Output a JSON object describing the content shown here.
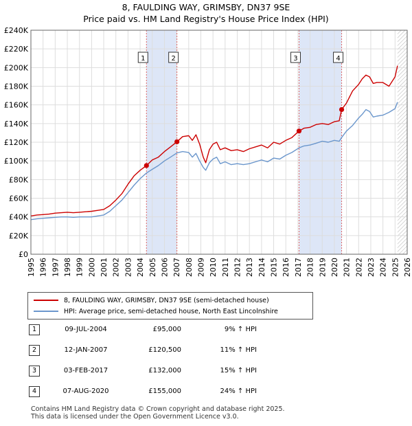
{
  "title_line1": "8, FAULDING WAY, GRIMSBY, DN37 9SE",
  "title_line2": "Price paid vs. HM Land Registry's House Price Index (HPI)",
  "colors": {
    "property": "#cc0000",
    "hpi": "#6a96cc",
    "shade": "#dde6f7",
    "grid": "#dddddd",
    "vline": "#dd6666"
  },
  "legend": {
    "property": "8, FAULDING WAY, GRIMSBY, DN37 9SE (semi-detached house)",
    "hpi": "HPI: Average price, semi-detached house, North East Lincolnshire"
  },
  "sales": [
    {
      "num": "1",
      "date": "09-JUL-2004",
      "price": "£95,000",
      "hpi": "9% ↑ HPI"
    },
    {
      "num": "2",
      "date": "12-JAN-2007",
      "price": "£120,500",
      "hpi": "11% ↑ HPI"
    },
    {
      "num": "3",
      "date": "03-FEB-2017",
      "price": "£132,000",
      "hpi": "15% ↑ HPI"
    },
    {
      "num": "4",
      "date": "07-AUG-2020",
      "price": "£155,000",
      "hpi": "24% ↑ HPI"
    }
  ],
  "footer_line1": "Contains HM Land Registry data © Crown copyright and database right 2025.",
  "footer_line2": "This data is licensed under the Open Government Licence v3.0.",
  "chart_data": {
    "type": "line",
    "title": "8, FAULDING WAY, GRIMSBY, DN37 9SE — Price paid vs. HM Land Registry's House Price Index (HPI)",
    "xlabel": "",
    "ylabel": "",
    "xlim": [
      1995,
      2026
    ],
    "ylim": [
      0,
      240000
    ],
    "grid": true,
    "x_ticks": [
      "1995",
      "1996",
      "1997",
      "1998",
      "1999",
      "2000",
      "2001",
      "2002",
      "2003",
      "2004",
      "2005",
      "2006",
      "2007",
      "2008",
      "2009",
      "2010",
      "2011",
      "2012",
      "2013",
      "2014",
      "2015",
      "2016",
      "2017",
      "2018",
      "2019",
      "2020",
      "2021",
      "2022",
      "2023",
      "2024",
      "2025",
      "2026"
    ],
    "y_ticks": [
      {
        "value": 0,
        "label": "£0"
      },
      {
        "value": 20000,
        "label": "£20K"
      },
      {
        "value": 40000,
        "label": "£40K"
      },
      {
        "value": 60000,
        "label": "£60K"
      },
      {
        "value": 80000,
        "label": "£80K"
      },
      {
        "value": 100000,
        "label": "£100K"
      },
      {
        "value": 120000,
        "label": "£120K"
      },
      {
        "value": 140000,
        "label": "£140K"
      },
      {
        "value": 160000,
        "label": "£160K"
      },
      {
        "value": 180000,
        "label": "£180K"
      },
      {
        "value": 200000,
        "label": "£200K"
      },
      {
        "value": 220000,
        "label": "£220K"
      },
      {
        "value": 240000,
        "label": "£240K"
      }
    ],
    "shaded_ranges": [
      [
        2004.52,
        2007.03
      ],
      [
        2017.09,
        2020.6
      ]
    ],
    "future_hatch_from": 2025.2,
    "markers": [
      {
        "label": "1",
        "x": 2004.52,
        "y": 95000
      },
      {
        "label": "2",
        "x": 2007.03,
        "y": 120500
      },
      {
        "label": "3",
        "x": 2017.09,
        "y": 132000
      },
      {
        "label": "4",
        "x": 2020.6,
        "y": 155000
      }
    ],
    "series": [
      {
        "name": "8, FAULDING WAY, GRIMSBY, DN37 9SE (semi-detached house)",
        "x": [
          1995,
          1995.5,
          1996,
          1996.5,
          1997,
          1997.5,
          1998,
          1998.5,
          1999,
          1999.5,
          2000,
          2000.5,
          2001,
          2001.5,
          2002,
          2002.5,
          2003,
          2003.5,
          2004,
          2004.52,
          2005,
          2005.5,
          2006,
          2006.5,
          2007.03,
          2007.5,
          2008,
          2008.3,
          2008.6,
          2008.9,
          2009.2,
          2009.4,
          2009.7,
          2010,
          2010.3,
          2010.6,
          2011,
          2011.5,
          2012,
          2012.5,
          2013,
          2013.5,
          2014,
          2014.5,
          2015,
          2015.5,
          2016,
          2016.5,
          2017.09,
          2017.5,
          2018,
          2018.5,
          2019,
          2019.5,
          2020,
          2020.4,
          2020.6,
          2021,
          2021.5,
          2022,
          2022.3,
          2022.6,
          2022.9,
          2023.2,
          2023.5,
          2024,
          2024.5,
          2025,
          2025.2
        ],
        "y": [
          41000,
          42000,
          42500,
          43000,
          44000,
          44500,
          45000,
          44500,
          45000,
          45500,
          46000,
          47000,
          48000,
          52000,
          58000,
          65000,
          75000,
          84000,
          90000,
          95000,
          101000,
          104000,
          110000,
          115000,
          120500,
          126000,
          127000,
          122000,
          128000,
          118000,
          104000,
          98000,
          112000,
          118000,
          120000,
          112000,
          114000,
          111000,
          112000,
          110000,
          113000,
          115000,
          117000,
          114000,
          120000,
          118000,
          122000,
          125000,
          132000,
          135000,
          136000,
          139000,
          140000,
          139000,
          142000,
          143000,
          155000,
          162000,
          175000,
          182000,
          188000,
          192000,
          190000,
          183000,
          184000,
          184000,
          180000,
          190000,
          202000
        ]
      },
      {
        "name": "HPI: Average price, semi-detached house, North East Lincolnshire",
        "x": [
          1995,
          1995.5,
          1996,
          1996.5,
          1997,
          1997.5,
          1998,
          1998.5,
          1999,
          1999.5,
          2000,
          2000.5,
          2001,
          2001.5,
          2002,
          2002.5,
          2003,
          2003.5,
          2004,
          2004.52,
          2005,
          2005.5,
          2006,
          2006.5,
          2007.03,
          2007.5,
          2008,
          2008.3,
          2008.6,
          2008.9,
          2009.2,
          2009.4,
          2009.7,
          2010,
          2010.3,
          2010.6,
          2011,
          2011.5,
          2012,
          2012.5,
          2013,
          2013.5,
          2014,
          2014.5,
          2015,
          2015.5,
          2016,
          2016.5,
          2017.09,
          2017.5,
          2018,
          2018.5,
          2019,
          2019.5,
          2020,
          2020.4,
          2020.6,
          2021,
          2021.5,
          2022,
          2022.3,
          2022.6,
          2022.9,
          2023.2,
          2023.5,
          2024,
          2024.5,
          2025,
          2025.2
        ],
        "y": [
          37000,
          38000,
          38500,
          39000,
          39500,
          40000,
          40000,
          39500,
          40000,
          40000,
          40000,
          41000,
          42000,
          46000,
          52000,
          58000,
          66000,
          74000,
          81000,
          87000,
          91000,
          95000,
          100000,
          104000,
          108500,
          110000,
          109000,
          104000,
          108000,
          100000,
          93000,
          90000,
          98000,
          102000,
          104000,
          97000,
          99000,
          96000,
          97000,
          96000,
          97000,
          99000,
          101000,
          99000,
          103000,
          102000,
          106000,
          109000,
          114000,
          116000,
          117000,
          119000,
          121000,
          120000,
          122000,
          121000,
          125000,
          132000,
          138000,
          146000,
          150000,
          155000,
          153000,
          147000,
          148000,
          149000,
          152000,
          156000,
          163000
        ]
      }
    ]
  }
}
